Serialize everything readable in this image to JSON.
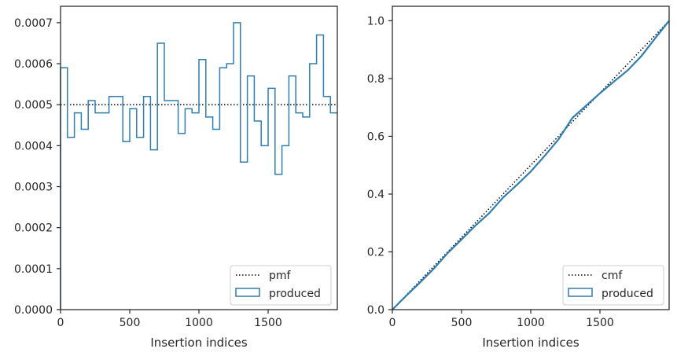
{
  "chart_data": [
    {
      "type": "line",
      "xlabel": "Insertion indices",
      "ylabel": "",
      "xlim": [
        0,
        2000
      ],
      "ylim": [
        0,
        0.00074
      ],
      "x_ticks": [
        0,
        500,
        1000,
        1500
      ],
      "x_tick_labels": [
        "0",
        "500",
        "1000",
        "1500"
      ],
      "y_ticks": [
        0,
        0.0001,
        0.0002,
        0.0003,
        0.0004,
        0.0005,
        0.0006,
        0.0007
      ],
      "y_tick_labels": [
        "0.0000",
        "0.0001",
        "0.0002",
        "0.0003",
        "0.0004",
        "0.0005",
        "0.0006",
        "0.0007"
      ],
      "grid": false,
      "legend": {
        "placement": "bottom-right",
        "entries": [
          "pmf",
          "produced"
        ]
      },
      "series": [
        {
          "name": "pmf",
          "style": "dotted",
          "color": "#000000",
          "x": [
            0,
            2000
          ],
          "y": [
            0.0005,
            0.0005
          ]
        },
        {
          "name": "produced",
          "style": "step",
          "color": "#2e7eb0",
          "bin_edges": [
            0,
            50,
            100,
            150,
            200,
            250,
            300,
            350,
            400,
            450,
            500,
            550,
            600,
            650,
            700,
            750,
            800,
            850,
            900,
            950,
            1000,
            1050,
            1100,
            1150,
            1200,
            1250,
            1300,
            1350,
            1400,
            1450,
            1500,
            1550,
            1600,
            1650,
            1700,
            1750,
            1800,
            1850,
            1900,
            1950,
            2000
          ],
          "values": [
            0.00059,
            0.00042,
            0.00048,
            0.00044,
            0.00051,
            0.00048,
            0.00048,
            0.00052,
            0.00052,
            0.00041,
            0.00049,
            0.00042,
            0.00052,
            0.00039,
            0.00065,
            0.00051,
            0.00051,
            0.00043,
            0.00049,
            0.00048,
            0.00061,
            0.00047,
            0.00044,
            0.00059,
            0.0006,
            0.0007,
            0.00036,
            0.00057,
            0.00046,
            0.0004,
            0.00054,
            0.00033,
            0.0004,
            0.00057,
            0.00048,
            0.00047,
            0.0006,
            0.00067,
            0.00052,
            0.00048
          ]
        }
      ]
    },
    {
      "type": "line",
      "xlabel": "Insertion indices",
      "ylabel": "",
      "xlim": [
        0,
        2000
      ],
      "ylim": [
        0,
        1.05
      ],
      "x_ticks": [
        0,
        500,
        1000,
        1500
      ],
      "x_tick_labels": [
        "0",
        "500",
        "1000",
        "1500"
      ],
      "y_ticks": [
        0,
        0.2,
        0.4,
        0.6,
        0.8,
        1.0
      ],
      "y_tick_labels": [
        "0.0",
        "0.2",
        "0.4",
        "0.6",
        "0.8",
        "1.0"
      ],
      "grid": false,
      "legend": {
        "placement": "bottom-right",
        "entries": [
          "cmf",
          "produced"
        ]
      },
      "series": [
        {
          "name": "cmf",
          "style": "dotted",
          "color": "#000000",
          "x": [
            0,
            2000
          ],
          "y": [
            0,
            1.0
          ]
        },
        {
          "name": "produced",
          "style": "solid",
          "color": "#2e7eb0",
          "x": [
            0,
            100,
            200,
            300,
            400,
            500,
            600,
            700,
            800,
            900,
            1000,
            1100,
            1200,
            1300,
            1400,
            1500,
            1600,
            1700,
            1800,
            1900,
            2000
          ],
          "y": [
            0,
            0.048,
            0.094,
            0.142,
            0.196,
            0.243,
            0.291,
            0.334,
            0.388,
            0.432,
            0.478,
            0.532,
            0.589,
            0.663,
            0.706,
            0.749,
            0.789,
            0.828,
            0.878,
            0.94,
            1.0
          ]
        }
      ]
    }
  ]
}
